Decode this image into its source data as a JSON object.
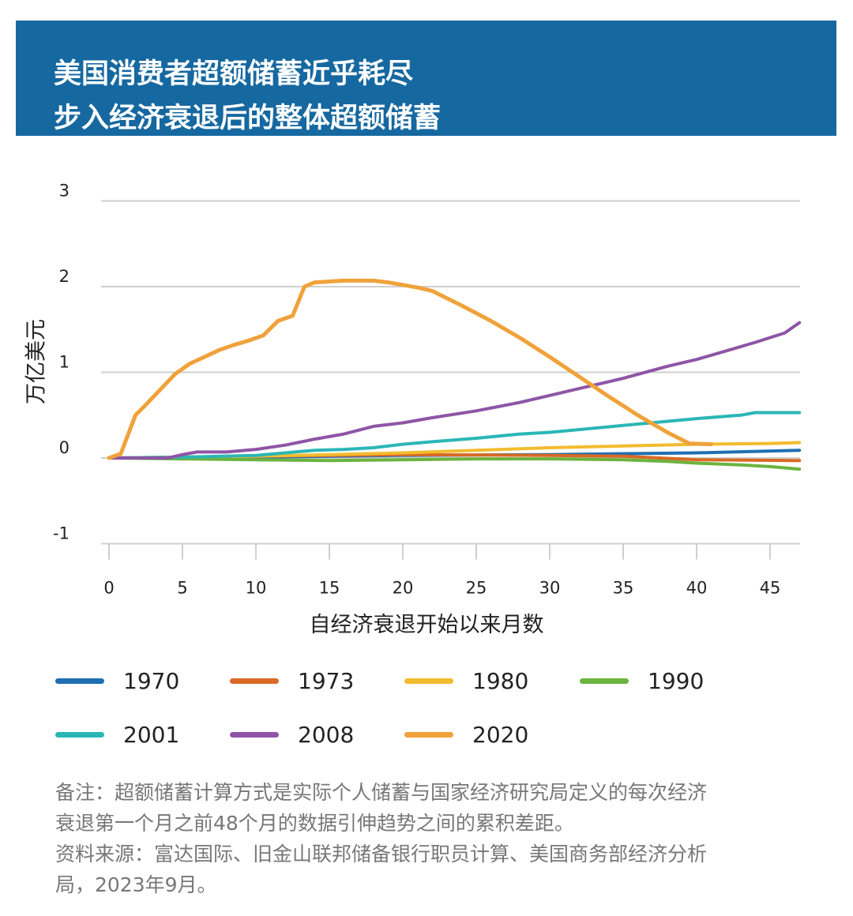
{
  "title": {
    "line1": "美国消费者超额储蓄近乎耗尽",
    "line2": "步入经济衰退后的整体超额储蓄"
  },
  "colors": {
    "header_bg": "#1668a0",
    "grid": "#cfcfcf"
  },
  "chart_data": {
    "type": "line",
    "xlabel": "自经济衰退开始以来月数",
    "ylabel": "万亿美元",
    "xlim": [
      0,
      47
    ],
    "ylim": [
      -1,
      3
    ],
    "x_ticks": [
      0,
      5,
      10,
      15,
      20,
      25,
      30,
      35,
      40,
      45
    ],
    "y_ticks": [
      -1,
      0,
      1,
      2,
      3
    ],
    "grid": "horizontal",
    "legend_position": "bottom",
    "series": [
      {
        "name": "1970",
        "color": "#1f6fb2",
        "x": [
          0,
          10,
          20,
          30,
          40,
          47
        ],
        "values": [
          0,
          0.01,
          0.03,
          0.04,
          0.06,
          0.09
        ]
      },
      {
        "name": "1973",
        "color": "#d96a25",
        "x": [
          0,
          10,
          20,
          30,
          35,
          40,
          47
        ],
        "values": [
          0,
          0.02,
          0.04,
          0.03,
          0.02,
          -0.02,
          -0.03
        ]
      },
      {
        "name": "1980",
        "color": "#f2bc2e",
        "x": [
          0,
          5,
          10,
          15,
          20,
          25,
          30,
          35,
          40,
          45,
          47
        ],
        "values": [
          0,
          0.01,
          0.02,
          0.04,
          0.06,
          0.09,
          0.12,
          0.14,
          0.16,
          0.17,
          0.18
        ]
      },
      {
        "name": "1990",
        "color": "#6cb33f",
        "x": [
          0,
          5,
          10,
          15,
          20,
          25,
          30,
          35,
          38,
          40,
          43,
          45,
          47
        ],
        "values": [
          0,
          -0.01,
          -0.02,
          -0.03,
          -0.02,
          -0.01,
          -0.01,
          -0.02,
          -0.04,
          -0.06,
          -0.08,
          -0.1,
          -0.13
        ]
      },
      {
        "name": "2001",
        "color": "#2bb6b6",
        "x": [
          0,
          5,
          10,
          12,
          14,
          16,
          18,
          20,
          22,
          25,
          28,
          30,
          35,
          40,
          43,
          44,
          45,
          47
        ],
        "values": [
          0,
          0.01,
          0.03,
          0.06,
          0.09,
          0.1,
          0.12,
          0.16,
          0.19,
          0.23,
          0.28,
          0.3,
          0.38,
          0.46,
          0.5,
          0.53,
          0.53,
          0.53
        ]
      },
      {
        "name": "2008",
        "color": "#8e55a6",
        "x": [
          0,
          4,
          5,
          6,
          8,
          10,
          12,
          14,
          16,
          18,
          20,
          22,
          25,
          28,
          30,
          32,
          35,
          38,
          40,
          42,
          44,
          46,
          47
        ],
        "values": [
          0,
          0,
          0.04,
          0.07,
          0.07,
          0.1,
          0.15,
          0.22,
          0.28,
          0.37,
          0.41,
          0.47,
          0.55,
          0.65,
          0.73,
          0.81,
          0.93,
          1.07,
          1.15,
          1.25,
          1.35,
          1.46,
          1.58
        ]
      },
      {
        "name": "2020",
        "color": "#f0a23a",
        "x": [
          0,
          0.8,
          1.8,
          2.5,
          3.5,
          4.5,
          5.5,
          6.5,
          7.5,
          8.5,
          9.5,
          10.5,
          11.5,
          12.5,
          13.3,
          14,
          15,
          16,
          17,
          18,
          19,
          20,
          21,
          22,
          24,
          26,
          28,
          30,
          32,
          34,
          36,
          38,
          39.5,
          41
        ],
        "values": [
          0,
          0.05,
          0.5,
          0.62,
          0.8,
          0.98,
          1.1,
          1.18,
          1.26,
          1.32,
          1.37,
          1.43,
          1.6,
          1.66,
          2.0,
          2.05,
          2.06,
          2.07,
          2.07,
          2.07,
          2.05,
          2.02,
          1.99,
          1.95,
          1.78,
          1.6,
          1.4,
          1.18,
          0.95,
          0.72,
          0.5,
          0.3,
          0.17,
          0.16
        ]
      }
    ]
  },
  "notes": {
    "line1": "备注：超额储蓄计算方式是实际个人储蓄与国家经济研究局定义的每次经济",
    "line2": "衰退第一个月之前48个月的数据引伸趋势之间的累积差距。",
    "line3": "资料来源：富达国际、旧金山联邦储备银行职员计算、美国商务部经济分析",
    "line4": "局，2023年9月。"
  }
}
